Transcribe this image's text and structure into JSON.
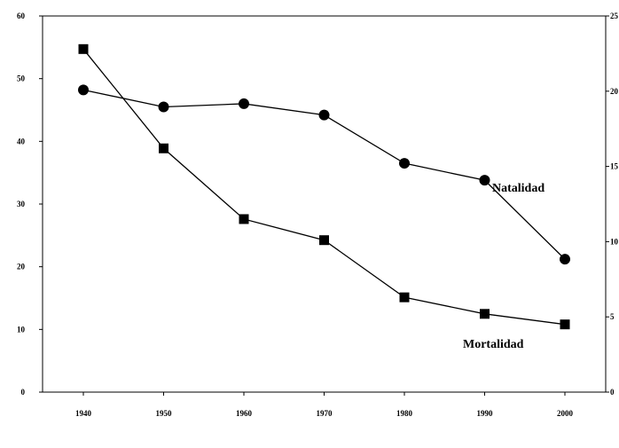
{
  "chart_data": {
    "type": "line",
    "title": "",
    "xlabel": "",
    "ylabel": "",
    "x": [
      1940,
      1950,
      1960,
      1970,
      1980,
      1990,
      2000
    ],
    "x_ticks": [
      "1940",
      "1950",
      "1960",
      "1970",
      "1980",
      "1990",
      "2000"
    ],
    "y_left_ticks": [
      "0",
      "10",
      "20",
      "30",
      "40",
      "50",
      "60"
    ],
    "y_right_ticks": [
      "0",
      "5",
      "10",
      "15",
      "20",
      "25"
    ],
    "y_left_lim": [
      0,
      60
    ],
    "y_right_lim": [
      0,
      25
    ],
    "grid": false,
    "legend": "none",
    "series": [
      {
        "name": "Natalidad",
        "axis": "left",
        "marker": "circle",
        "values": [
          48.2,
          45.5,
          46.0,
          44.2,
          36.5,
          33.8,
          21.2
        ]
      },
      {
        "name": "Mortalidad",
        "axis": "right",
        "marker": "square",
        "values": [
          22.8,
          16.2,
          11.5,
          10.1,
          6.3,
          5.2,
          4.5
        ]
      }
    ],
    "colors": {
      "line": "#000000",
      "marker": "#000000"
    }
  }
}
